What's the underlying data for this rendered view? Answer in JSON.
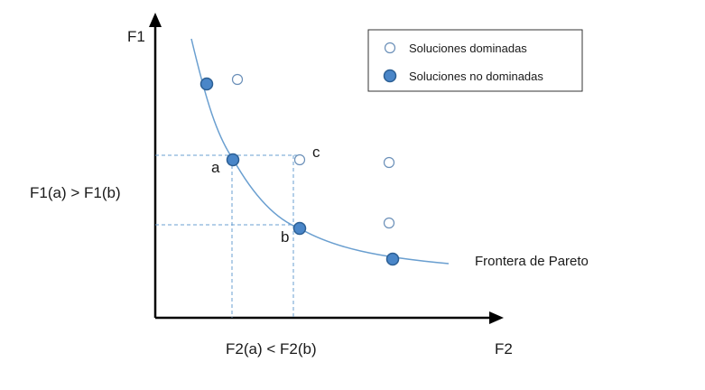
{
  "axes": {
    "y_label": "F1",
    "x_label": "F2"
  },
  "annotations": {
    "left": "F1(a) > F1(b)",
    "bottom": "F2(a) < F2(b)",
    "frontier": "Frontera de Pareto"
  },
  "points": {
    "a": "a",
    "b": "b",
    "c": "c"
  },
  "legend": {
    "dominated": "Soluciones dominadas",
    "non_dominated": "Soluciones no dominadas"
  },
  "colors": {
    "curve": "#6a9fd0",
    "filled_fill": "#4a86c8",
    "filled_stroke": "#2c5f94",
    "hollow_stroke": "#6a8fb8",
    "axis": "#000000"
  }
}
